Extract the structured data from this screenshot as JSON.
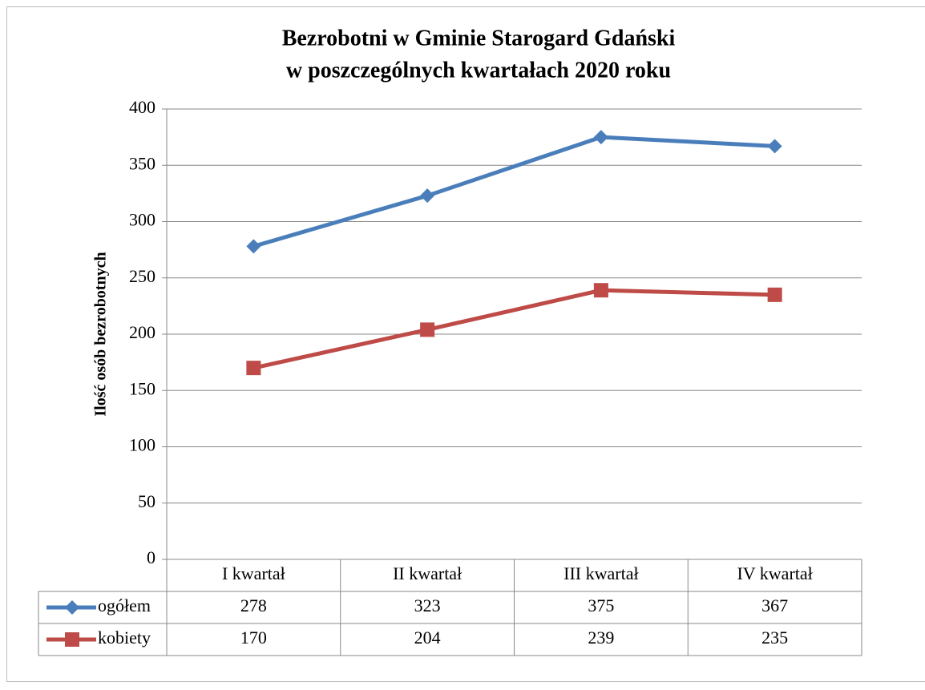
{
  "chart_data": {
    "type": "line",
    "title": "Bezrobotni w Gminie Starogard Gdański",
    "subtitle": "w poszczególnych kwartałach 2020 roku",
    "y_label": "Ilość osób bezrobotnych",
    "categories": [
      "I kwartał",
      "II kwartał",
      "III kwartał",
      "IV kwartał"
    ],
    "series": [
      {
        "name": "ogółem",
        "color": "#4a7ebb",
        "marker": "diamond",
        "values": [
          278,
          323,
          375,
          367
        ]
      },
      {
        "name": "kobiety",
        "color": "#be4b48",
        "marker": "square",
        "values": [
          170,
          204,
          239,
          235
        ]
      }
    ],
    "ylim": [
      0,
      400
    ],
    "yticks": [
      0,
      50,
      100,
      150,
      200,
      250,
      300,
      350,
      400
    ],
    "grid": true
  }
}
